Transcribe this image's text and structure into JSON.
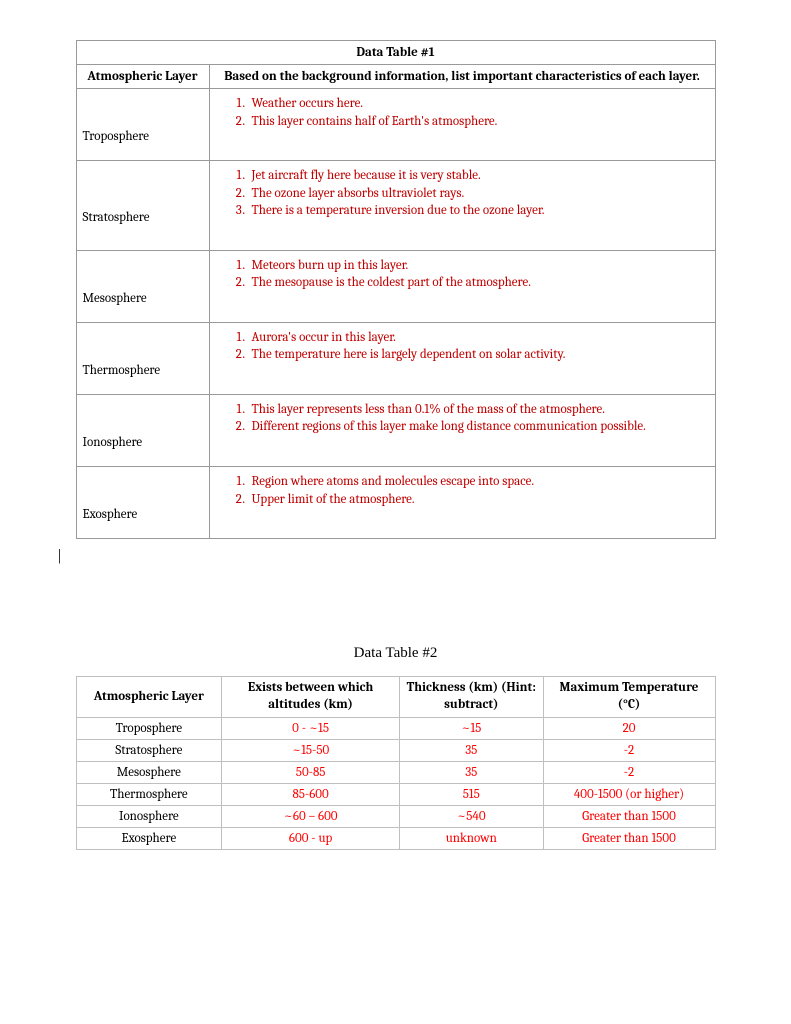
{
  "table1": {
    "title": "Data Table #1",
    "header_layer": "Atmospheric Layer",
    "header_char": "Based on the background information, list important characteristics of each layer.",
    "text_color_answers": "#c00000",
    "rows": [
      {
        "layer": "Troposphere",
        "item1": "Weather occurs here.",
        "item2": "This layer contains half of Earth's atmosphere.",
        "item3": ""
      },
      {
        "layer": "Stratosphere",
        "item1": "Jet aircraft fly here because it is very stable.",
        "item2": "The ozone layer absorbs ultraviolet rays.",
        "item3": "There is a temperature inversion due to the ozone layer."
      },
      {
        "layer": "Mesosphere",
        "item1": "Meteors burn up in this layer.",
        "item2": "The mesopause is the coldest part of the atmosphere.",
        "item3": ""
      },
      {
        "layer": "Thermosphere",
        "item1": "Aurora's occur in this layer.",
        "item2": "The temperature here is largely dependent on solar activity.",
        "item3": ""
      },
      {
        "layer": "Ionosphere",
        "item1": "This layer represents less than 0.1% of the mass of the atmosphere.",
        "item2": "Different regions of this layer make long distance communication possible.",
        "item3": ""
      },
      {
        "layer": "Exosphere",
        "item1": "Region where atoms and molecules escape into space.",
        "item2": "Upper limit of the atmosphere.",
        "item3": ""
      }
    ]
  },
  "table2": {
    "title": "Data Table #2",
    "header_layer": "Atmospheric Layer",
    "header_alt": "Exists between which altitudes (km)",
    "header_thick": "Thickness (km) (Hint: subtract)",
    "header_temp": "Maximum Temperature (°C)",
    "answer_color": "#ff0000",
    "rows": [
      {
        "layer": "Troposphere",
        "alt": "0 - ~15",
        "thick": "~15",
        "temp": "20"
      },
      {
        "layer": "Stratosphere",
        "alt": "~15-50",
        "thick": "35",
        "temp": "-2"
      },
      {
        "layer": "Mesosphere",
        "alt": "50-85",
        "thick": "35",
        "temp": "-2"
      },
      {
        "layer": "Thermosphere",
        "alt": "85-600",
        "thick": "515",
        "temp": "400-1500 (or higher)"
      },
      {
        "layer": "Ionosphere",
        "alt": "~60 – 600",
        "thick": "~540",
        "temp": "Greater than 1500"
      },
      {
        "layer": "Exosphere",
        "alt": "600 - up",
        "thick": "unknown",
        "temp": "Greater than 1500"
      }
    ]
  }
}
